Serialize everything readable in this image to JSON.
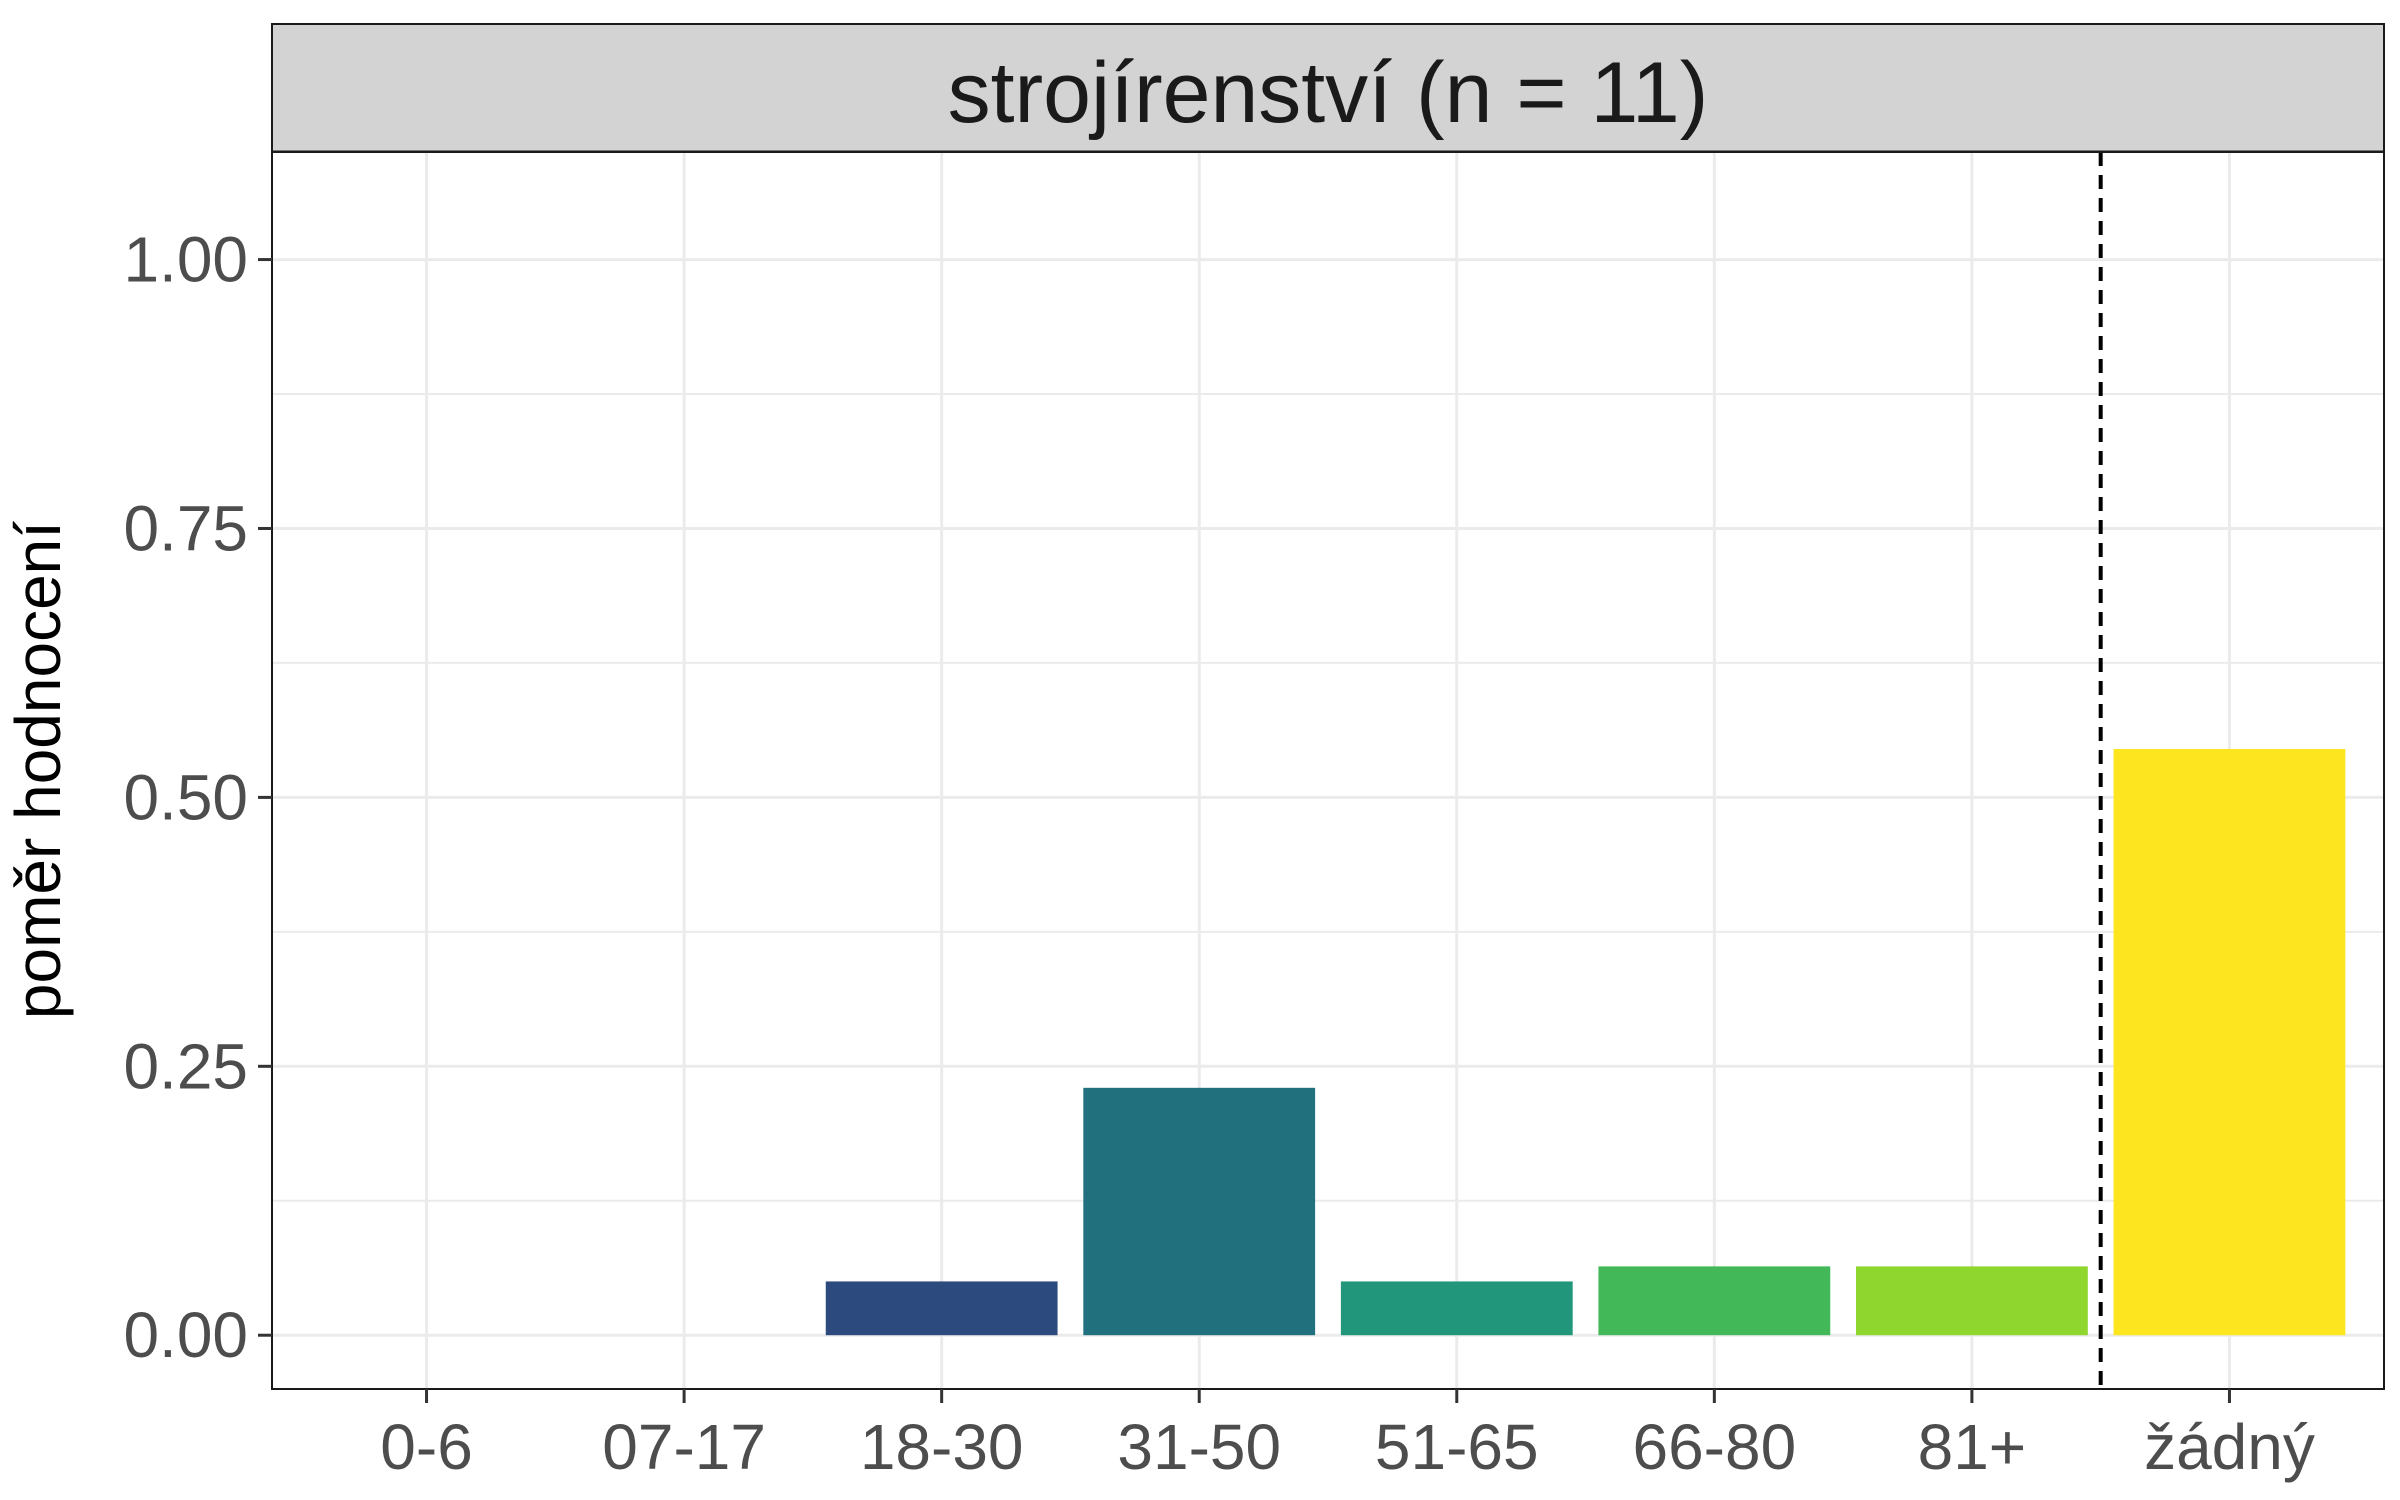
{
  "chart_data": {
    "type": "bar",
    "facet_title": "strojírenství (n = 11)",
    "xlabel": "",
    "ylabel": "poměr hodnocení",
    "ylim": [
      -0.05,
      1.1
    ],
    "yticks": [
      0,
      0.25,
      0.5,
      0.75,
      1
    ],
    "ytick_labels": [
      "0.00",
      "0.25",
      "0.50",
      "0.75",
      "1.00"
    ],
    "grid": true,
    "legend": "none",
    "categories": [
      "0-6",
      "07-17",
      "18-30",
      "31-50",
      "51-65",
      "66-80",
      "81+",
      "žádný"
    ],
    "values": [
      0,
      0,
      0.05,
      0.23,
      0.05,
      0.064,
      0.064,
      0.545
    ],
    "colors": [
      "#440154",
      "#46327e",
      "#2c4a7e",
      "#21707e",
      "#21967a",
      "#43b858",
      "#8fd62e",
      "#fde51f"
    ],
    "separator": {
      "style": "dashed",
      "between": [
        "81+",
        "žádný"
      ]
    },
    "panel_background": "#ffffff",
    "strip_background": "#d3d3d3",
    "grid_color": "#ebebeb"
  }
}
